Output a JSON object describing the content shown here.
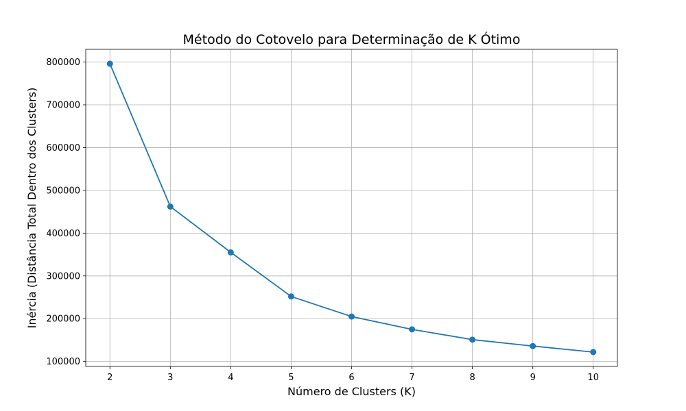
{
  "chart_data": {
    "type": "line",
    "title": "Método do Cotovelo para Determinação de K Ótimo",
    "xlabel": "Número de Clusters (K)",
    "ylabel": "Inércia (Distância Total Dentro dos Clusters)",
    "x": [
      2,
      3,
      4,
      5,
      6,
      7,
      8,
      9,
      10
    ],
    "series": [
      {
        "values": [
          796000,
          462000,
          355000,
          252000,
          205000,
          175000,
          151000,
          136000,
          122000
        ],
        "color": "#1f77b4",
        "marker": "circle"
      }
    ],
    "xticks": [
      "2",
      "3",
      "4",
      "5",
      "6",
      "7",
      "8",
      "9",
      "10"
    ],
    "yticks": [
      "100000",
      "200000",
      "300000",
      "400000",
      "500000",
      "600000",
      "700000",
      "800000"
    ],
    "xlim": [
      1.6,
      10.4
    ],
    "ylim": [
      88300,
      829700
    ],
    "grid": true
  }
}
